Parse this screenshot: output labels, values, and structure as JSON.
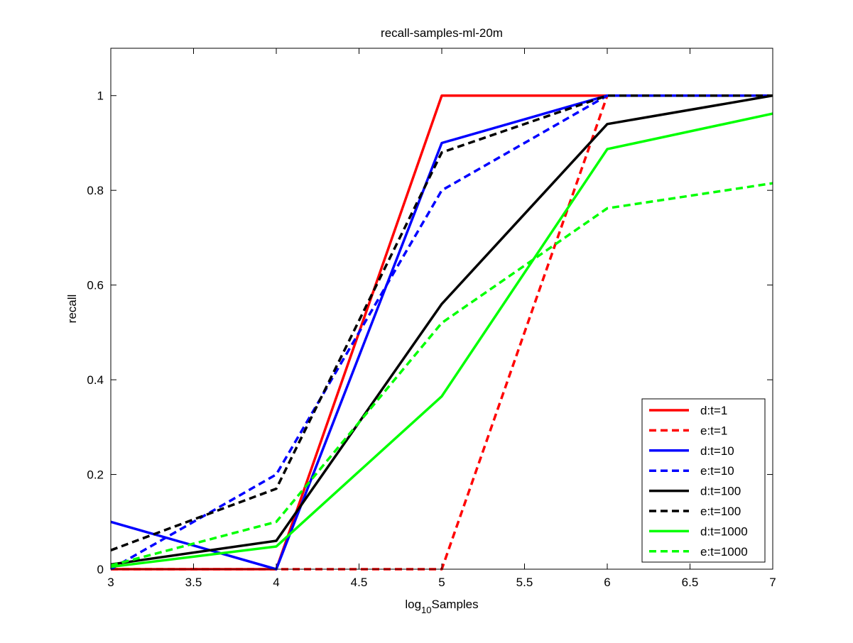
{
  "chart_data": {
    "type": "line",
    "title": "recall-samples-ml-20m",
    "xlabel_base": "log",
    "xlabel_sub": "10",
    "xlabel_rest": "Samples",
    "ylabel": "recall",
    "xlim": [
      3,
      7
    ],
    "ylim": [
      0,
      1.1
    ],
    "xticks": [
      3,
      3.5,
      4,
      4.5,
      5,
      5.5,
      6,
      6.5,
      7
    ],
    "xtick_labels": [
      "3",
      "3.5",
      "4",
      "4.5",
      "5",
      "5.5",
      "6",
      "6.5",
      "7"
    ],
    "yticks": [
      0,
      0.2,
      0.4,
      0.6,
      0.8,
      1
    ],
    "ytick_labels": [
      "0",
      "0.2",
      "0.4",
      "0.6",
      "0.8",
      "1"
    ],
    "grid": false,
    "legend_position": "bottom-right",
    "x": [
      3,
      4,
      5,
      6,
      7
    ],
    "series": [
      {
        "name": "d:t=1",
        "color": "#ff0000",
        "style": "solid",
        "values": [
          0,
          0,
          1,
          1,
          1
        ]
      },
      {
        "name": "e:t=1",
        "color": "#ff0000",
        "style": "dashed",
        "values": [
          0,
          0,
          0,
          1,
          1
        ]
      },
      {
        "name": "d:t=10",
        "color": "#0000ff",
        "style": "solid",
        "values": [
          0.1,
          0,
          0.9,
          1,
          1
        ]
      },
      {
        "name": "e:t=10",
        "color": "#0000ff",
        "style": "dashed",
        "values": [
          0,
          0.2,
          0.8,
          1,
          1
        ]
      },
      {
        "name": "d:t=100",
        "color": "#000000",
        "style": "solid",
        "values": [
          0.01,
          0.06,
          0.56,
          0.94,
          1
        ]
      },
      {
        "name": "e:t=100",
        "color": "#000000",
        "style": "dashed",
        "values": [
          0.04,
          0.17,
          0.88,
          1,
          1
        ]
      },
      {
        "name": "d:t=1000",
        "color": "#00ff00",
        "style": "solid",
        "values": [
          0.005,
          0.048,
          0.365,
          0.887,
          0.962
        ]
      },
      {
        "name": "e:t=1000",
        "color": "#00ff00",
        "style": "dashed",
        "values": [
          0.008,
          0.1,
          0.52,
          0.762,
          0.815
        ]
      }
    ]
  }
}
